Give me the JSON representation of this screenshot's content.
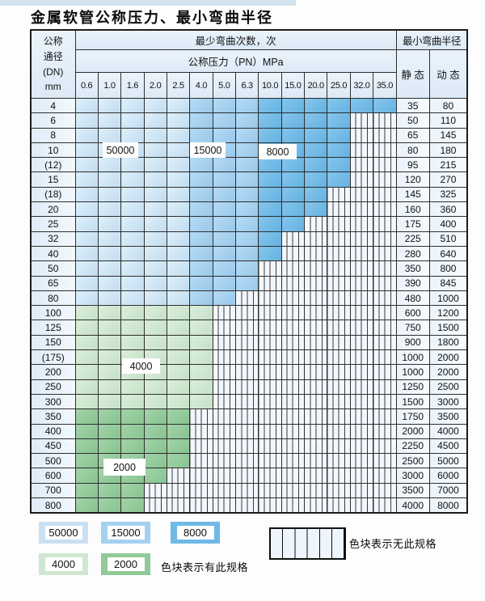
{
  "page": {
    "title": "金属软管公称压力、最小弯曲半径"
  },
  "table_header": {
    "dn_lines": [
      "公称",
      "通径",
      "(DN)",
      "mm"
    ],
    "cycles_label": "最少弯曲次数，次",
    "pressure_label": "公称压力（PN）MPa",
    "radius_label": "最小弯曲半径",
    "static_label": "静 态",
    "dynamic_label": "动 态"
  },
  "matrix_labels": {
    "b50000": "50000",
    "b15000": "15000",
    "b8000": "8000",
    "g4000": "4000",
    "g2000": "2000"
  },
  "legend": {
    "swatch_50000": "50000",
    "swatch_15000": "15000",
    "swatch_8000": "8000",
    "swatch_4000": "4000",
    "swatch_2000": "2000",
    "available_note": "色块表示有此规格",
    "unavailable_note": "色块表示无此规格"
  },
  "chart_data": {
    "type": "table",
    "title": "金属软管公称压力、最小弯曲半径",
    "rows_label": "公称通径(DN) mm",
    "columns_label": "公称压力（PN）MPa",
    "pressure_columns": [
      "0.6",
      "1.0",
      "1.6",
      "2.0",
      "2.5",
      "4.0",
      "5.0",
      "6.3",
      "10.0",
      "15.0",
      "20.0",
      "25.0",
      "32.0",
      "35.0"
    ],
    "zone_cycles": {
      "b1": 50000,
      "b2": 15000,
      "b3": 8000,
      "g1": 4000,
      "g2": 2000,
      "x": null
    },
    "zone_colors": {
      "b1": "#cde2f4",
      "b2": "#a3d1ef",
      "b3": "#6fb9e6",
      "g1": "#d0e7d1",
      "g2": "#90ca98",
      "x": "white-with-vertical-stripes"
    },
    "zone_meaning": {
      "colored": "色块表示有此规格",
      "striped": "色块表示无此规格"
    },
    "radius_columns": [
      "静 态",
      "动 态"
    ],
    "rows": [
      {
        "dn": "4",
        "static": "35",
        "dynamic": "80",
        "zones": [
          "b1",
          "b1",
          "b1",
          "b1",
          "b1",
          "b2",
          "b2",
          "b2",
          "b3",
          "b3",
          "b3",
          "b3",
          "b3",
          "b3"
        ]
      },
      {
        "dn": "6",
        "static": "50",
        "dynamic": "110",
        "zones": [
          "b1",
          "b1",
          "b1",
          "b1",
          "b1",
          "b2",
          "b2",
          "b2",
          "b3",
          "b3",
          "b3",
          "b3",
          "x",
          "x"
        ]
      },
      {
        "dn": "8",
        "static": "65",
        "dynamic": "145",
        "zones": [
          "b1",
          "b1",
          "b1",
          "b1",
          "b1",
          "b2",
          "b2",
          "b2",
          "b3",
          "b3",
          "b3",
          "b3",
          "x",
          "x"
        ]
      },
      {
        "dn": "10",
        "static": "80",
        "dynamic": "180",
        "zones": [
          "b1",
          "b1",
          "b1",
          "b1",
          "b1",
          "b2",
          "b2",
          "b2",
          "b3",
          "b3",
          "b3",
          "b3",
          "x",
          "x"
        ]
      },
      {
        "dn": "(12)",
        "static": "95",
        "dynamic": "215",
        "zones": [
          "b1",
          "b1",
          "b1",
          "b1",
          "b1",
          "b2",
          "b2",
          "b2",
          "b3",
          "b3",
          "b3",
          "b3",
          "x",
          "x"
        ]
      },
      {
        "dn": "15",
        "static": "120",
        "dynamic": "270",
        "zones": [
          "b1",
          "b1",
          "b1",
          "b1",
          "b1",
          "b2",
          "b2",
          "b2",
          "b3",
          "b3",
          "b3",
          "b3",
          "x",
          "x"
        ]
      },
      {
        "dn": "(18)",
        "static": "145",
        "dynamic": "325",
        "zones": [
          "b1",
          "b1",
          "b1",
          "b1",
          "b1",
          "b2",
          "b2",
          "b2",
          "b3",
          "b3",
          "b3",
          "x",
          "x",
          "x"
        ]
      },
      {
        "dn": "20",
        "static": "160",
        "dynamic": "360",
        "zones": [
          "b1",
          "b1",
          "b1",
          "b1",
          "b1",
          "b2",
          "b2",
          "b2",
          "b3",
          "b3",
          "b3",
          "x",
          "x",
          "x"
        ]
      },
      {
        "dn": "25",
        "static": "175",
        "dynamic": "400",
        "zones": [
          "b1",
          "b1",
          "b1",
          "b1",
          "b1",
          "b2",
          "b2",
          "b2",
          "b3",
          "b3",
          "x",
          "x",
          "x",
          "x"
        ]
      },
      {
        "dn": "32",
        "static": "225",
        "dynamic": "510",
        "zones": [
          "b1",
          "b1",
          "b1",
          "b1",
          "b1",
          "b2",
          "b2",
          "b2",
          "b3",
          "x",
          "x",
          "x",
          "x",
          "x"
        ]
      },
      {
        "dn": "40",
        "static": "280",
        "dynamic": "640",
        "zones": [
          "b1",
          "b1",
          "b1",
          "b1",
          "b1",
          "b2",
          "b2",
          "b2",
          "b3",
          "x",
          "x",
          "x",
          "x",
          "x"
        ]
      },
      {
        "dn": "50",
        "static": "350",
        "dynamic": "800",
        "zones": [
          "b1",
          "b1",
          "b1",
          "b1",
          "b1",
          "b2",
          "b2",
          "b2",
          "x",
          "x",
          "x",
          "x",
          "x",
          "x"
        ]
      },
      {
        "dn": "65",
        "static": "390",
        "dynamic": "845",
        "zones": [
          "b1",
          "b1",
          "b1",
          "b1",
          "b1",
          "b2",
          "b2",
          "b2",
          "x",
          "x",
          "x",
          "x",
          "x",
          "x"
        ]
      },
      {
        "dn": "80",
        "static": "480",
        "dynamic": "1000",
        "zones": [
          "b1",
          "b1",
          "b1",
          "b1",
          "b1",
          "b2",
          "b2",
          "x",
          "x",
          "x",
          "x",
          "x",
          "x",
          "x"
        ]
      },
      {
        "dn": "100",
        "static": "600",
        "dynamic": "1200",
        "zones": [
          "g1",
          "g1",
          "g1",
          "g1",
          "g1",
          "g1",
          "x",
          "x",
          "x",
          "x",
          "x",
          "x",
          "x",
          "x"
        ]
      },
      {
        "dn": "125",
        "static": "750",
        "dynamic": "1500",
        "zones": [
          "g1",
          "g1",
          "g1",
          "g1",
          "g1",
          "g1",
          "x",
          "x",
          "x",
          "x",
          "x",
          "x",
          "x",
          "x"
        ]
      },
      {
        "dn": "150",
        "static": "900",
        "dynamic": "1800",
        "zones": [
          "g1",
          "g1",
          "g1",
          "g1",
          "g1",
          "g1",
          "x",
          "x",
          "x",
          "x",
          "x",
          "x",
          "x",
          "x"
        ]
      },
      {
        "dn": "(175)",
        "static": "1000",
        "dynamic": "2000",
        "zones": [
          "g1",
          "g1",
          "g1",
          "g1",
          "g1",
          "g1",
          "x",
          "x",
          "x",
          "x",
          "x",
          "x",
          "x",
          "x"
        ]
      },
      {
        "dn": "200",
        "static": "1000",
        "dynamic": "2000",
        "zones": [
          "g1",
          "g1",
          "g1",
          "g1",
          "g1",
          "g1",
          "x",
          "x",
          "x",
          "x",
          "x",
          "x",
          "x",
          "x"
        ]
      },
      {
        "dn": "250",
        "static": "1250",
        "dynamic": "2500",
        "zones": [
          "g1",
          "g1",
          "g1",
          "g1",
          "g1",
          "g1",
          "x",
          "x",
          "x",
          "x",
          "x",
          "x",
          "x",
          "x"
        ]
      },
      {
        "dn": "300",
        "static": "1500",
        "dynamic": "3000",
        "zones": [
          "g1",
          "g1",
          "g1",
          "g1",
          "g1",
          "g1",
          "x",
          "x",
          "x",
          "x",
          "x",
          "x",
          "x",
          "x"
        ]
      },
      {
        "dn": "350",
        "static": "1750",
        "dynamic": "3500",
        "zones": [
          "g2",
          "g2",
          "g2",
          "g2",
          "g2",
          "x",
          "x",
          "x",
          "x",
          "x",
          "x",
          "x",
          "x",
          "x"
        ]
      },
      {
        "dn": "400",
        "static": "2000",
        "dynamic": "4000",
        "zones": [
          "g2",
          "g2",
          "g2",
          "g2",
          "g2",
          "x",
          "x",
          "x",
          "x",
          "x",
          "x",
          "x",
          "x",
          "x"
        ]
      },
      {
        "dn": "450",
        "static": "2250",
        "dynamic": "4500",
        "zones": [
          "g2",
          "g2",
          "g2",
          "g2",
          "g2",
          "x",
          "x",
          "x",
          "x",
          "x",
          "x",
          "x",
          "x",
          "x"
        ]
      },
      {
        "dn": "500",
        "static": "2500",
        "dynamic": "5000",
        "zones": [
          "g2",
          "g2",
          "g2",
          "g2",
          "g2",
          "x",
          "x",
          "x",
          "x",
          "x",
          "x",
          "x",
          "x",
          "x"
        ]
      },
      {
        "dn": "600",
        "static": "3000",
        "dynamic": "6000",
        "zones": [
          "g2",
          "g2",
          "g2",
          "g2",
          "x",
          "x",
          "x",
          "x",
          "x",
          "x",
          "x",
          "x",
          "x",
          "x"
        ]
      },
      {
        "dn": "700",
        "static": "3500",
        "dynamic": "7000",
        "zones": [
          "g2",
          "g2",
          "g2",
          "x",
          "x",
          "x",
          "x",
          "x",
          "x",
          "x",
          "x",
          "x",
          "x",
          "x"
        ]
      },
      {
        "dn": "800",
        "static": "4000",
        "dynamic": "8000",
        "zones": [
          "g2",
          "g2",
          "g2",
          "x",
          "x",
          "x",
          "x",
          "x",
          "x",
          "x",
          "x",
          "x",
          "x",
          "x"
        ]
      }
    ]
  }
}
